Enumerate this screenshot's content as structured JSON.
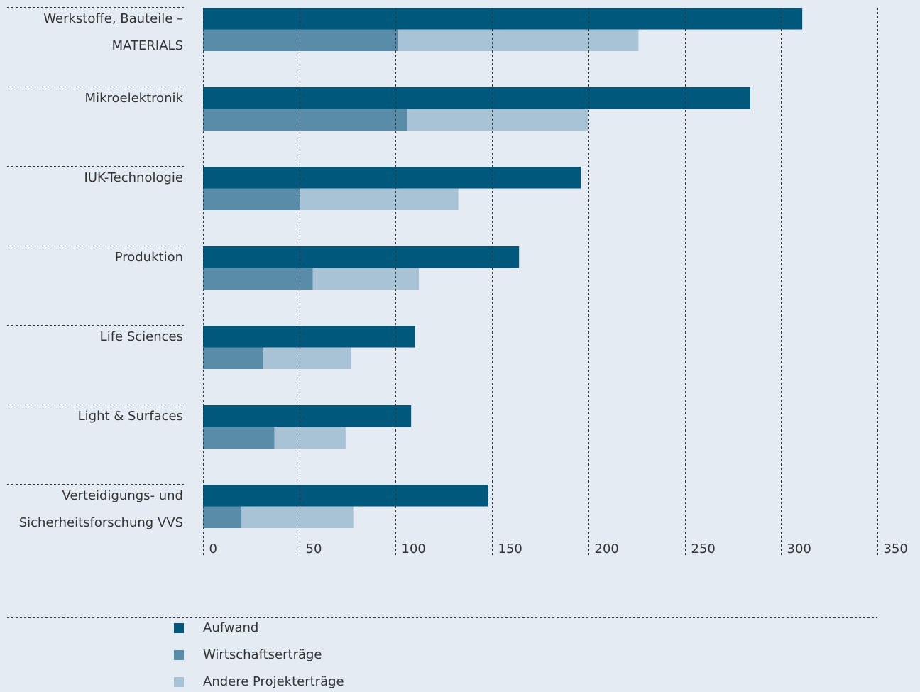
{
  "chart_data": {
    "type": "bar",
    "categories": [
      [
        "Werkstoffe, Bauteile –",
        "MATERIALS"
      ],
      [
        "Mikroelektronik"
      ],
      [
        "IUK-Technologie"
      ],
      [
        "Produktion"
      ],
      [
        "Life Sciences"
      ],
      [
        "Light & Surfaces"
      ],
      [
        "Verteidigungs- und",
        "Sicherheitsforschung VVS"
      ]
    ],
    "series": [
      {
        "name": "Aufwand",
        "color": "#00587c",
        "values": [
          311,
          284,
          196,
          164,
          110,
          108,
          148
        ]
      },
      {
        "name": "Wirtschaftserträge",
        "color": "#588ca8",
        "values": [
          101,
          106,
          50.5,
          57,
          31,
          37,
          20
        ],
        "stack": "income"
      },
      {
        "name": "Andere Projekterträge",
        "color": "#a8c3d6",
        "values": [
          125,
          94,
          82,
          55,
          46,
          37,
          58
        ],
        "stack": "income"
      }
    ],
    "xlim": [
      0,
      350
    ],
    "xticks": [
      0,
      50,
      100,
      150,
      200,
      250,
      300,
      350
    ],
    "grid": true
  }
}
